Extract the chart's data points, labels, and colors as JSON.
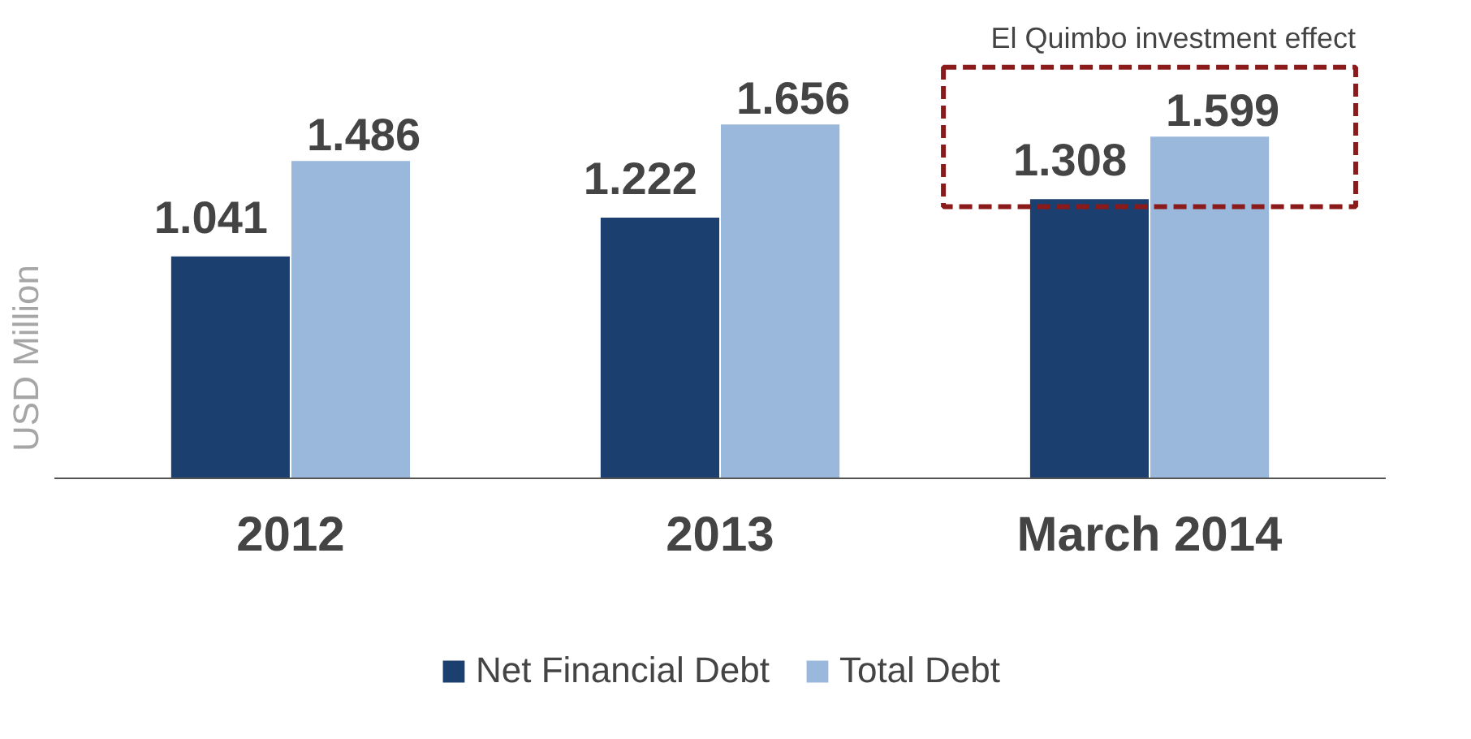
{
  "chart_data": {
    "type": "bar",
    "ylabel": "USD Million",
    "categories": [
      "2012",
      "2013",
      "March 2014"
    ],
    "series": [
      {
        "name": "Net Financial Debt",
        "color": "#1b3f6e",
        "values": [
          1.041,
          1.222,
          1.308
        ]
      },
      {
        "name": "Total Debt",
        "color": "#9ab8dc",
        "values": [
          1.486,
          1.656,
          1.599
        ]
      }
    ],
    "data_labels": true,
    "legend": "bottom",
    "grid": false,
    "annotations": [
      "El Quimbo investment effect"
    ]
  }
}
